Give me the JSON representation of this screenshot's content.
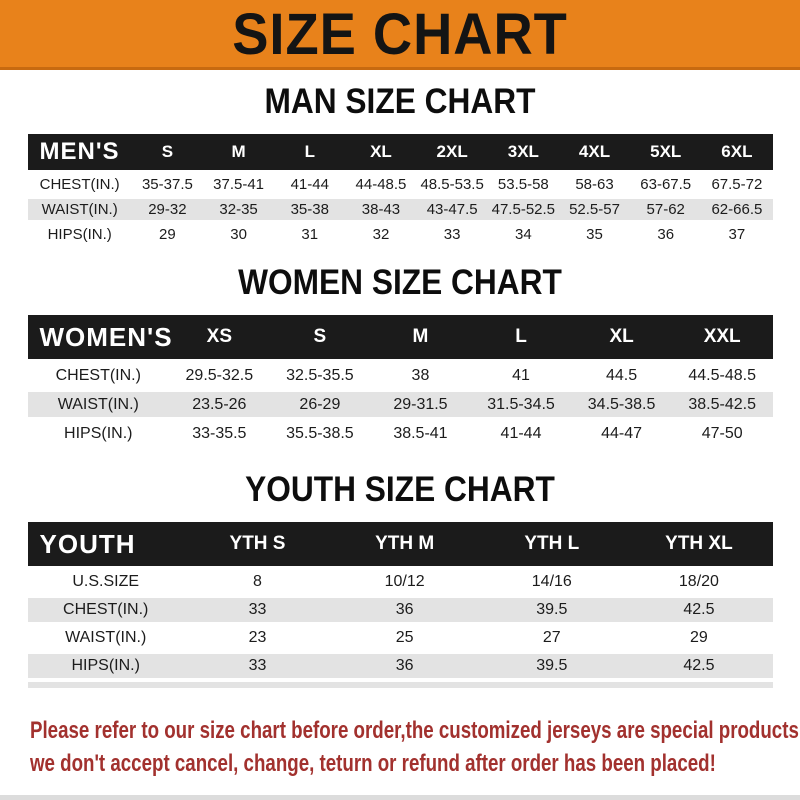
{
  "banner": {
    "title": "SIZE CHART"
  },
  "sections": [
    {
      "id": "men",
      "title": "MAN SIZE CHART",
      "header_label": "MEN'S",
      "columns": [
        "S",
        "M",
        "L",
        "XL",
        "2XL",
        "3XL",
        "4XL",
        "5XL",
        "6XL"
      ],
      "rows": [
        {
          "label": "CHEST(IN.)",
          "values": [
            "35-37.5",
            "37.5-41",
            "41-44",
            "44-48.5",
            "48.5-53.5",
            "53.5-58",
            "58-63",
            "63-67.5",
            "67.5-72"
          ]
        },
        {
          "label": "WAIST(IN.)",
          "values": [
            "29-32",
            "32-35",
            "35-38",
            "38-43",
            "43-47.5",
            "47.5-52.5",
            "52.5-57",
            "57-62",
            "62-66.5"
          ]
        },
        {
          "label": "HIPS(IN.)",
          "values": [
            "29",
            "30",
            "31",
            "32",
            "33",
            "34",
            "35",
            "36",
            "37"
          ]
        }
      ]
    },
    {
      "id": "women",
      "title": "WOMEN SIZE CHART",
      "header_label": "WOMEN'S",
      "columns": [
        "XS",
        "S",
        "M",
        "L",
        "XL",
        "XXL"
      ],
      "rows": [
        {
          "label": "CHEST(IN.)",
          "values": [
            "29.5-32.5",
            "32.5-35.5",
            "38",
            "41",
            "44.5",
            "44.5-48.5"
          ]
        },
        {
          "label": "WAIST(IN.)",
          "values": [
            "23.5-26",
            "26-29",
            "29-31.5",
            "31.5-34.5",
            "34.5-38.5",
            "38.5-42.5"
          ]
        },
        {
          "label": "HIPS(IN.)",
          "values": [
            "33-35.5",
            "35.5-38.5",
            "38.5-41",
            "41-44",
            "44-47",
            "47-50"
          ]
        }
      ]
    },
    {
      "id": "youth",
      "title": "YOUTH SIZE CHART",
      "header_label": "YOUTH",
      "columns": [
        "YTH S",
        "YTH M",
        "YTH L",
        "YTH XL"
      ],
      "rows": [
        {
          "label": "U.S.SIZE",
          "values": [
            "8",
            "10/12",
            "14/16",
            "18/20"
          ]
        },
        {
          "label": "CHEST(IN.)",
          "values": [
            "33",
            "36",
            "39.5",
            "42.5"
          ]
        },
        {
          "label": "WAIST(IN.)",
          "values": [
            "23",
            "25",
            "27",
            "29"
          ]
        },
        {
          "label": "HIPS(IN.)",
          "values": [
            "33",
            "36",
            "39.5",
            "42.5"
          ]
        }
      ]
    }
  ],
  "footer": {
    "line1": "Please refer to our size chart before order,the customized jerseys are special products,",
    "line2": "we don't accept cancel, change, teturn or refund after order has been placed!"
  },
  "colors": {
    "banner_orange": "#E8821B",
    "banner_edge": "#C76A10",
    "header_black": "#1B1B1B",
    "row_gray": "#E3E3E3",
    "footer_red": "#A2312E"
  }
}
